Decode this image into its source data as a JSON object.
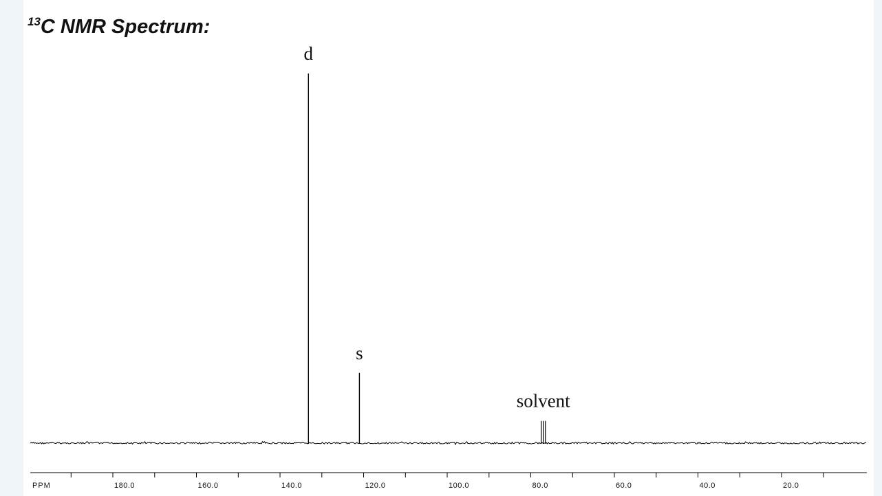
{
  "header": {
    "title_sup": "13",
    "title_main": "C NMR Spectrum:"
  },
  "chart_data": {
    "type": "line",
    "title": "13C NMR Spectrum:",
    "xlabel": "PPM",
    "ylabel": "",
    "axis_unit_label": "PPM",
    "x_direction": "reversed",
    "xlim": [
      200.0,
      0.0
    ],
    "ylim": [
      0,
      1
    ],
    "grid": false,
    "x_ticks": [
      180.0,
      160.0,
      140.0,
      120.0,
      100.0,
      80.0,
      60.0,
      40.0,
      20.0
    ],
    "x_tick_labels": [
      "180.0",
      "160.0",
      "140.0",
      "120.0",
      "100.0",
      "80.0",
      "60.0",
      "40.0",
      "20.0"
    ],
    "peaks": [
      {
        "ppm": 133.2,
        "intensity": 1.0,
        "label": "d"
      },
      {
        "ppm": 121.0,
        "intensity": 0.19,
        "label": "s"
      },
      {
        "ppm": 77.5,
        "intensity": 0.06,
        "label": ""
      },
      {
        "ppm": 77.0,
        "intensity": 0.06,
        "label": ""
      },
      {
        "ppm": 76.5,
        "intensity": 0.06,
        "label": ""
      }
    ],
    "annotations": [
      {
        "text": "d",
        "ppm": 133.2
      },
      {
        "text": "s",
        "ppm": 121.0
      },
      {
        "text": "solvent",
        "ppm": 77.0
      }
    ],
    "colors": {
      "trace": "#000000",
      "background": "#ffffff"
    }
  }
}
